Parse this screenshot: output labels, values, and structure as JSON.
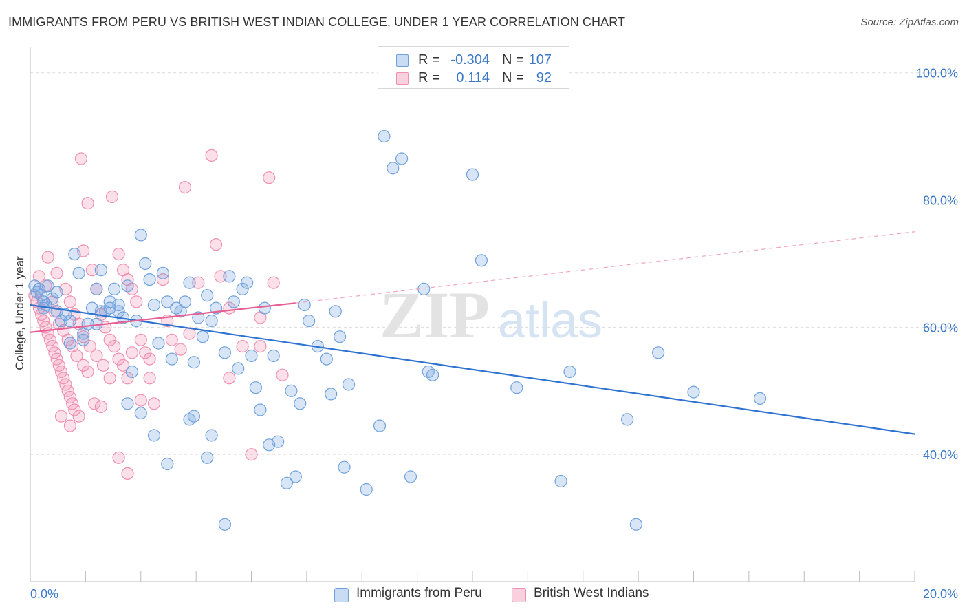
{
  "header": {
    "title": "IMMIGRANTS FROM PERU VS BRITISH WEST INDIAN COLLEGE, UNDER 1 YEAR CORRELATION CHART",
    "source": "Source: ZipAtlas.com"
  },
  "watermark": {
    "zip": "ZIP",
    "atlas": "atlas"
  },
  "legend_top": [
    {
      "r_label": "R =",
      "r_value": "-0.304",
      "n_label": "N =",
      "n_value": "107",
      "color": "#6fa1dd"
    },
    {
      "r_label": "R =",
      "r_value": "0.114",
      "n_label": "N =",
      "n_value": "92",
      "color": "#f08fb0"
    }
  ],
  "legend_bottom": [
    {
      "label": "Immigrants from Peru",
      "color": "#6fa1dd"
    },
    {
      "label": "British West Indians",
      "color": "#f08fb0"
    }
  ],
  "chart_data": {
    "type": "scatter",
    "title": "IMMIGRANTS FROM PERU VS BRITISH WEST INDIAN COLLEGE, UNDER 1 YEAR CORRELATION CHART",
    "xlabel": "",
    "ylabel": "College, Under 1 year",
    "xlim": [
      0,
      20
    ],
    "ylim": [
      20,
      103
    ],
    "x_tick_labels": [
      {
        "value": 0,
        "label": "0.0%"
      },
      {
        "value": 20,
        "label": "20.0%"
      }
    ],
    "y_tick_labels": [
      {
        "value": 40,
        "label": "40.0%"
      },
      {
        "value": 60,
        "label": "60.0%"
      },
      {
        "value": 80,
        "label": "80.0%"
      },
      {
        "value": 100,
        "label": "100.0%"
      }
    ],
    "grid": "horizontal dashed",
    "legend_position": "top-center",
    "series": [
      {
        "name": "Immigrants from Peru",
        "color": "#6fa1dd",
        "trend": {
          "x": [
            0,
            20
          ],
          "y": [
            63.5,
            43.2
          ],
          "style": "solid"
        },
        "points": [
          [
            0.1,
            66.5
          ],
          [
            0.15,
            65.5
          ],
          [
            0.2,
            66
          ],
          [
            0.25,
            65
          ],
          [
            0.3,
            64
          ],
          [
            0.35,
            63.5
          ],
          [
            0.4,
            66.5
          ],
          [
            0.5,
            64.5
          ],
          [
            0.6,
            65.5
          ],
          [
            0.7,
            61
          ],
          [
            0.8,
            62
          ],
          [
            0.9,
            61
          ],
          [
            1.0,
            71.5
          ],
          [
            1.1,
            68.5
          ],
          [
            1.2,
            59
          ],
          [
            1.3,
            60.5
          ],
          [
            1.4,
            63
          ],
          [
            1.5,
            66
          ],
          [
            1.6,
            69
          ],
          [
            1.7,
            62.5
          ],
          [
            1.8,
            64
          ],
          [
            1.9,
            66
          ],
          [
            2.0,
            62.5
          ],
          [
            2.1,
            61.5
          ],
          [
            2.2,
            66.5
          ],
          [
            2.3,
            53
          ],
          [
            2.4,
            61
          ],
          [
            2.5,
            74.5
          ],
          [
            2.6,
            70
          ],
          [
            2.7,
            67.5
          ],
          [
            2.8,
            63.5
          ],
          [
            2.9,
            57.5
          ],
          [
            3.0,
            68.5
          ],
          [
            3.1,
            64
          ],
          [
            3.2,
            55
          ],
          [
            3.3,
            63
          ],
          [
            3.4,
            62.5
          ],
          [
            3.5,
            64
          ],
          [
            3.6,
            67
          ],
          [
            3.7,
            54.5
          ],
          [
            3.8,
            61.5
          ],
          [
            3.9,
            58.5
          ],
          [
            4.0,
            65
          ],
          [
            4.1,
            61
          ],
          [
            4.2,
            63
          ],
          [
            4.4,
            56
          ],
          [
            4.5,
            68
          ],
          [
            4.6,
            64
          ],
          [
            4.7,
            53.5
          ],
          [
            4.8,
            66
          ],
          [
            4.9,
            67
          ],
          [
            5.0,
            55.5
          ],
          [
            5.1,
            50.5
          ],
          [
            5.2,
            47
          ],
          [
            5.3,
            63
          ],
          [
            5.5,
            55.5
          ],
          [
            5.6,
            42
          ],
          [
            5.8,
            35.5
          ],
          [
            5.9,
            50
          ],
          [
            6.1,
            48
          ],
          [
            6.2,
            63.5
          ],
          [
            6.3,
            61
          ],
          [
            6.5,
            57
          ],
          [
            6.7,
            55
          ],
          [
            6.8,
            49.5
          ],
          [
            6.9,
            62.5
          ],
          [
            7.0,
            58.5
          ],
          [
            7.1,
            38
          ],
          [
            7.2,
            51
          ],
          [
            7.6,
            34.5
          ],
          [
            7.9,
            44.5
          ],
          [
            8.0,
            90
          ],
          [
            8.2,
            85
          ],
          [
            8.4,
            86.5
          ],
          [
            8.6,
            36.5
          ],
          [
            8.9,
            66
          ],
          [
            9.0,
            53
          ],
          [
            9.1,
            52.5
          ],
          [
            10.0,
            84
          ],
          [
            10.2,
            70.5
          ],
          [
            11.0,
            50.5
          ],
          [
            12.0,
            35.8
          ],
          [
            12.2,
            53
          ],
          [
            13.5,
            45.5
          ],
          [
            13.7,
            29
          ],
          [
            14.2,
            56
          ],
          [
            15.0,
            49.8
          ],
          [
            16.5,
            48.8
          ],
          [
            1.5,
            60.5
          ],
          [
            2.2,
            48
          ],
          [
            2.5,
            46.5
          ],
          [
            2.8,
            43
          ],
          [
            3.1,
            38.5
          ],
          [
            3.6,
            45.5
          ],
          [
            4.0,
            39.5
          ],
          [
            4.4,
            29
          ],
          [
            3.7,
            46
          ],
          [
            4.1,
            43
          ],
          [
            5.4,
            41.5
          ],
          [
            6.0,
            36.5
          ],
          [
            1.2,
            58
          ],
          [
            0.9,
            57.5
          ],
          [
            1.6,
            62.5
          ],
          [
            2.0,
            63.5
          ],
          [
            0.3,
            63
          ],
          [
            0.6,
            62.5
          ],
          [
            1.8,
            63
          ]
        ]
      },
      {
        "name": "British West Indians",
        "color": "#f08fb0",
        "trend": {
          "x": [
            0,
            6
          ],
          "y": [
            59.2,
            63.8
          ],
          "style": "solid",
          "extended": {
            "x": [
              6,
              20
            ],
            "y": [
              63.8,
              75
            ]
          }
        },
        "points": [
          [
            0.1,
            65
          ],
          [
            0.15,
            64
          ],
          [
            0.2,
            63
          ],
          [
            0.25,
            62
          ],
          [
            0.3,
            61
          ],
          [
            0.35,
            60
          ],
          [
            0.4,
            59
          ],
          [
            0.45,
            58
          ],
          [
            0.5,
            57
          ],
          [
            0.55,
            56
          ],
          [
            0.6,
            55
          ],
          [
            0.65,
            54
          ],
          [
            0.7,
            53
          ],
          [
            0.75,
            52
          ],
          [
            0.8,
            51
          ],
          [
            0.85,
            50
          ],
          [
            0.9,
            49
          ],
          [
            0.95,
            48
          ],
          [
            1.0,
            47
          ],
          [
            1.1,
            46
          ],
          [
            1.15,
            86.5
          ],
          [
            1.2,
            72
          ],
          [
            1.3,
            79.5
          ],
          [
            1.4,
            69
          ],
          [
            1.5,
            66
          ],
          [
            1.6,
            62
          ],
          [
            1.7,
            60
          ],
          [
            1.8,
            58
          ],
          [
            1.9,
            57
          ],
          [
            2.0,
            55
          ],
          [
            2.1,
            54
          ],
          [
            2.2,
            52
          ],
          [
            1.85,
            80.5
          ],
          [
            2.0,
            71.5
          ],
          [
            2.1,
            69
          ],
          [
            2.2,
            67.5
          ],
          [
            2.3,
            66
          ],
          [
            2.4,
            64
          ],
          [
            2.5,
            58
          ],
          [
            2.6,
            56
          ],
          [
            2.7,
            52
          ],
          [
            2.8,
            48
          ],
          [
            3.0,
            67.5
          ],
          [
            3.1,
            61
          ],
          [
            3.2,
            58
          ],
          [
            3.5,
            82
          ],
          [
            3.6,
            59
          ],
          [
            3.8,
            67
          ],
          [
            4.1,
            87
          ],
          [
            4.2,
            73
          ],
          [
            4.3,
            68
          ],
          [
            4.5,
            63
          ],
          [
            5.0,
            40
          ],
          [
            5.2,
            57
          ],
          [
            5.4,
            83.5
          ],
          [
            5.5,
            67
          ],
          [
            5.7,
            52.5
          ],
          [
            0.2,
            68
          ],
          [
            0.35,
            66.5
          ],
          [
            0.5,
            64
          ],
          [
            0.55,
            62.5
          ],
          [
            0.65,
            60.5
          ],
          [
            0.75,
            59.5
          ],
          [
            0.85,
            58
          ],
          [
            0.95,
            57
          ],
          [
            1.05,
            55.5
          ],
          [
            1.2,
            54
          ],
          [
            1.3,
            53
          ],
          [
            1.45,
            48
          ],
          [
            1.6,
            47.5
          ],
          [
            2.0,
            39.5
          ],
          [
            2.2,
            37
          ],
          [
            2.5,
            48.5
          ],
          [
            0.4,
            71
          ],
          [
            0.6,
            68.5
          ],
          [
            0.8,
            66
          ],
          [
            0.9,
            64
          ],
          [
            1.0,
            62
          ],
          [
            1.1,
            60.5
          ],
          [
            1.2,
            58.5
          ],
          [
            1.35,
            57
          ],
          [
            1.5,
            55.5
          ],
          [
            1.65,
            54
          ],
          [
            1.8,
            52
          ],
          [
            0.7,
            46
          ],
          [
            0.9,
            44.5
          ],
          [
            2.3,
            56
          ],
          [
            2.7,
            55
          ],
          [
            3.4,
            56.5
          ],
          [
            4.5,
            52
          ],
          [
            4.8,
            57
          ],
          [
            5.2,
            61.5
          ]
        ]
      }
    ]
  }
}
